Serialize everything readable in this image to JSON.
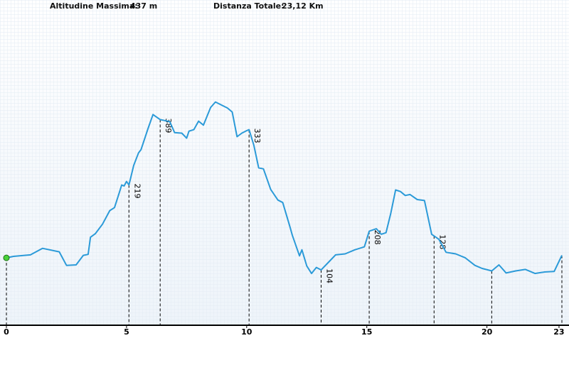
{
  "header": {
    "max_altitude_label": "Altitudine Massima:",
    "max_altitude_value": "437 m",
    "total_distance_label": "Distanza Totale:",
    "total_distance_value": "23,12 Km"
  },
  "colors": {
    "line": "#2b9ad8",
    "start_marker": "#49d23a",
    "grid": "#dde7f1",
    "axis": "#000000"
  },
  "chart_data": {
    "type": "line",
    "title": "",
    "xlabel": "",
    "ylabel": "",
    "xlim": [
      0,
      23.12
    ],
    "ylim": [
      0,
      460
    ],
    "grid": true,
    "legend": "none",
    "x_ticks": [
      {
        "value": 0,
        "label": "0"
      },
      {
        "value": 5,
        "label": "5"
      },
      {
        "value": 10,
        "label": "10"
      },
      {
        "value": 15,
        "label": "15"
      },
      {
        "value": 20,
        "label": "20"
      },
      {
        "value": 23,
        "label": "23"
      }
    ],
    "series": [
      {
        "points": [
          [
            0,
            134
          ],
          [
            0.3,
            137
          ],
          [
            1.0,
            140
          ],
          [
            1.5,
            153
          ],
          [
            2.2,
            146
          ],
          [
            2.5,
            119
          ],
          [
            2.9,
            120
          ],
          [
            3.2,
            139
          ],
          [
            3.4,
            141
          ],
          [
            3.5,
            175
          ],
          [
            3.7,
            182
          ],
          [
            4.0,
            201
          ],
          [
            4.3,
            228
          ],
          [
            4.5,
            234
          ],
          [
            4.7,
            264
          ],
          [
            4.8,
            279
          ],
          [
            4.9,
            277
          ],
          [
            5.0,
            286
          ],
          [
            5.1,
            279
          ],
          [
            5.3,
            318
          ],
          [
            5.5,
            343
          ],
          [
            5.6,
            349
          ],
          [
            5.9,
            392
          ],
          [
            6.1,
            419
          ],
          [
            6.4,
            409
          ],
          [
            6.8,
            405
          ],
          [
            7.0,
            383
          ],
          [
            7.3,
            382
          ],
          [
            7.5,
            372
          ],
          [
            7.6,
            386
          ],
          [
            7.8,
            389
          ],
          [
            8.0,
            406
          ],
          [
            8.2,
            398
          ],
          [
            8.5,
            433
          ],
          [
            8.7,
            444
          ],
          [
            9.2,
            432
          ],
          [
            9.4,
            424
          ],
          [
            9.6,
            375
          ],
          [
            9.8,
            382
          ],
          [
            10.0,
            387
          ],
          [
            10.1,
            389
          ],
          [
            10.3,
            358
          ],
          [
            10.5,
            313
          ],
          [
            10.7,
            311
          ],
          [
            11.0,
            270
          ],
          [
            11.3,
            249
          ],
          [
            11.5,
            244
          ],
          [
            11.8,
            196
          ],
          [
            11.9,
            179
          ],
          [
            12.2,
            138
          ],
          [
            12.3,
            150
          ],
          [
            12.5,
            118
          ],
          [
            12.7,
            103
          ],
          [
            12.9,
            115
          ],
          [
            13.1,
            110
          ],
          [
            13.4,
            125
          ],
          [
            13.7,
            140
          ],
          [
            14.1,
            142
          ],
          [
            14.5,
            150
          ],
          [
            14.9,
            156
          ],
          [
            15.1,
            187
          ],
          [
            15.4,
            192
          ],
          [
            15.6,
            181
          ],
          [
            15.8,
            184
          ],
          [
            16.0,
            223
          ],
          [
            16.2,
            269
          ],
          [
            16.4,
            266
          ],
          [
            16.6,
            258
          ],
          [
            16.8,
            260
          ],
          [
            17.1,
            250
          ],
          [
            17.4,
            248
          ],
          [
            17.7,
            181
          ],
          [
            18.0,
            171
          ],
          [
            18.3,
            145
          ],
          [
            18.7,
            142
          ],
          [
            19.1,
            134
          ],
          [
            19.5,
            119
          ],
          [
            19.8,
            113
          ],
          [
            20.2,
            108
          ],
          [
            20.5,
            120
          ],
          [
            20.8,
            104
          ],
          [
            21.2,
            108
          ],
          [
            21.6,
            111
          ],
          [
            22.0,
            103
          ],
          [
            22.4,
            106
          ],
          [
            22.8,
            107
          ],
          [
            23.12,
            139
          ]
        ]
      }
    ],
    "markers": [
      {
        "x": 0,
        "label": ""
      },
      {
        "x": 5.1,
        "label": "219"
      },
      {
        "x": 6.4,
        "label": "389"
      },
      {
        "x": 10.1,
        "label": "333"
      },
      {
        "x": 13.1,
        "label": "104"
      },
      {
        "x": 15.1,
        "label": "208"
      },
      {
        "x": 17.8,
        "label": "128"
      },
      {
        "x": 20.2,
        "label": ""
      },
      {
        "x": 23.12,
        "label": ""
      }
    ],
    "start_point": {
      "x": 0,
      "y": 134
    }
  }
}
